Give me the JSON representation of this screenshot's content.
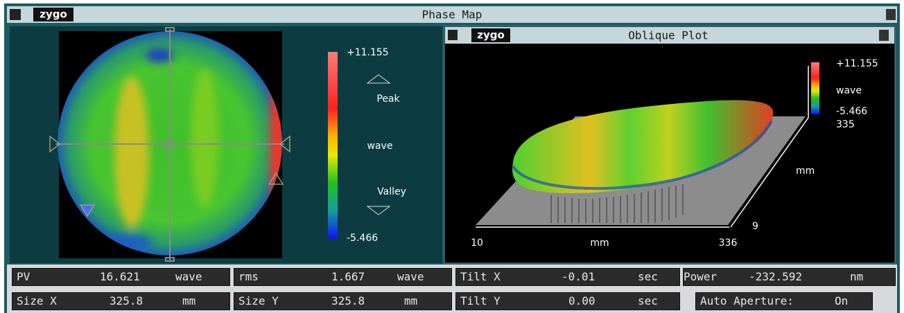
{
  "phase_map": {
    "logo": "zygo",
    "title": "Phase Map",
    "scale": {
      "max": "+11.155",
      "peak": "Peak",
      "unit": "wave",
      "valley": "Valley",
      "min": "-5.466"
    }
  },
  "oblique_plot": {
    "logo": "zygo",
    "title": "Oblique Plot",
    "scale": {
      "max": "+11.155",
      "unit": "wave",
      "min": "-5.466"
    },
    "axes": {
      "y_start": "335",
      "y_label": "mm",
      "y_end": "9",
      "x_start": "10",
      "x_label": "mm",
      "x_end": "336"
    }
  },
  "stats": [
    {
      "label": "PV",
      "value": "16.621",
      "unit": "wave"
    },
    {
      "label": "rms",
      "value": "1.667",
      "unit": "wave"
    },
    {
      "label": "Tilt X",
      "value": "-0.01",
      "unit": "sec"
    },
    {
      "label": "Power",
      "value": "-232.592",
      "unit": "nm"
    },
    {
      "label": "Size X",
      "value": "325.8",
      "unit": "mm"
    },
    {
      "label": "Size Y",
      "value": "325.8",
      "unit": "mm"
    },
    {
      "label": "Tilt Y",
      "value": "0.00",
      "unit": "sec"
    },
    {
      "label": "Auto Aperture:",
      "value": "On"
    }
  ]
}
